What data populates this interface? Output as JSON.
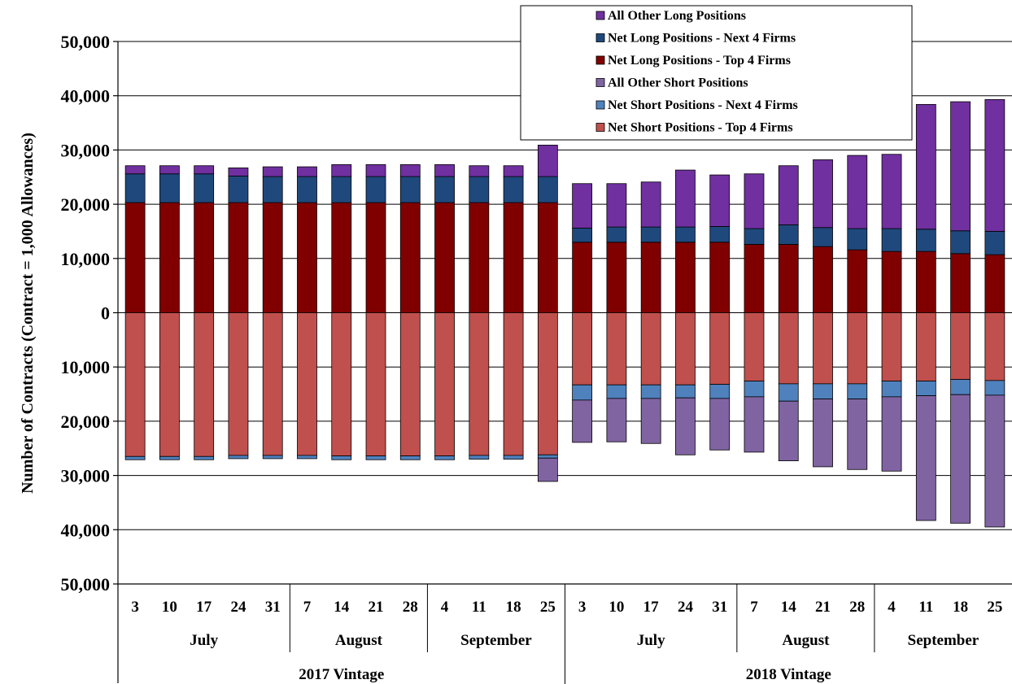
{
  "chart_data": {
    "type": "bar",
    "stacked": true,
    "ylabel": "Number of Contracts (Contract = 1,000 Allowances)",
    "ylim": [
      -50000,
      50000
    ],
    "yticks": [
      50000,
      40000,
      30000,
      20000,
      10000,
      0,
      -10000,
      -20000,
      -30000,
      -40000,
      -50000
    ],
    "ytick_labels": [
      "50,000",
      "40,000",
      "30,000",
      "20,000",
      "10,000",
      "0",
      "10,000",
      "20,000",
      "30,000",
      "40,000",
      "50,000"
    ],
    "grid": true,
    "legend_position": "top-right",
    "categories": [
      "3",
      "10",
      "17",
      "24",
      "31",
      "7",
      "14",
      "21",
      "28",
      "4",
      "11",
      "18",
      "25",
      "3",
      "10",
      "17",
      "24",
      "31",
      "7",
      "14",
      "21",
      "28",
      "4",
      "11",
      "18",
      "25"
    ],
    "month_groups": [
      {
        "label": "July",
        "count": 5
      },
      {
        "label": "August",
        "count": 4
      },
      {
        "label": "September",
        "count": 4
      },
      {
        "label": "July",
        "count": 5
      },
      {
        "label": "August",
        "count": 4
      },
      {
        "label": "September",
        "count": 4
      }
    ],
    "vintage_groups": [
      {
        "label": "2017 Vintage",
        "count": 13
      },
      {
        "label": "2018 Vintage",
        "count": 13
      }
    ],
    "series": [
      {
        "name": "All Other Long Positions",
        "side": "long",
        "color": "#7030a0",
        "values": [
          1500,
          1500,
          1500,
          1500,
          1800,
          1800,
          2200,
          2200,
          2200,
          2200,
          2000,
          2000,
          5800,
          8200,
          8000,
          8300,
          10500,
          9500,
          10100,
          10900,
          12500,
          13500,
          13700,
          23000,
          23800,
          24300
        ]
      },
      {
        "name": "Net Long Positions - Next 4 Firms",
        "side": "long",
        "color": "#1f497d",
        "values": [
          5300,
          5300,
          5300,
          4900,
          4800,
          4800,
          4800,
          4800,
          4800,
          4800,
          4800,
          4800,
          4800,
          2600,
          2800,
          2800,
          2800,
          2900,
          2900,
          3600,
          3500,
          3900,
          4200,
          4100,
          4200,
          4300
        ]
      },
      {
        "name": "Net Long Positions - Top 4 Firms",
        "side": "long",
        "color": "#800000",
        "values": [
          20300,
          20300,
          20300,
          20300,
          20300,
          20300,
          20300,
          20300,
          20300,
          20300,
          20300,
          20300,
          20300,
          13000,
          13000,
          13000,
          13000,
          13000,
          12600,
          12600,
          12200,
          11600,
          11300,
          11300,
          10900,
          10700
        ]
      },
      {
        "name": "All Other Short Positions",
        "side": "short",
        "color": "#8064a2",
        "values": [
          0,
          0,
          0,
          0,
          0,
          0,
          0,
          0,
          0,
          0,
          0,
          0,
          4300,
          7800,
          8000,
          8300,
          10500,
          9500,
          10200,
          11000,
          12500,
          13000,
          13700,
          23000,
          23700,
          24300
        ]
      },
      {
        "name": "Net Short Positions - Next 4 Firms",
        "side": "short",
        "color": "#4f81bd",
        "values": [
          600,
          600,
          600,
          600,
          600,
          600,
          700,
          700,
          700,
          700,
          700,
          700,
          600,
          2800,
          2500,
          2500,
          2400,
          2600,
          2900,
          3200,
          2800,
          2800,
          2900,
          2700,
          2800,
          2700
        ]
      },
      {
        "name": "Net Short Positions - Top 4 Firms",
        "side": "short",
        "color": "#c0504d",
        "values": [
          26500,
          26500,
          26500,
          26300,
          26300,
          26300,
          26400,
          26400,
          26400,
          26400,
          26300,
          26300,
          26200,
          13300,
          13300,
          13300,
          13300,
          13200,
          12600,
          13100,
          13100,
          13100,
          12600,
          12600,
          12300,
          12500
        ]
      }
    ]
  }
}
